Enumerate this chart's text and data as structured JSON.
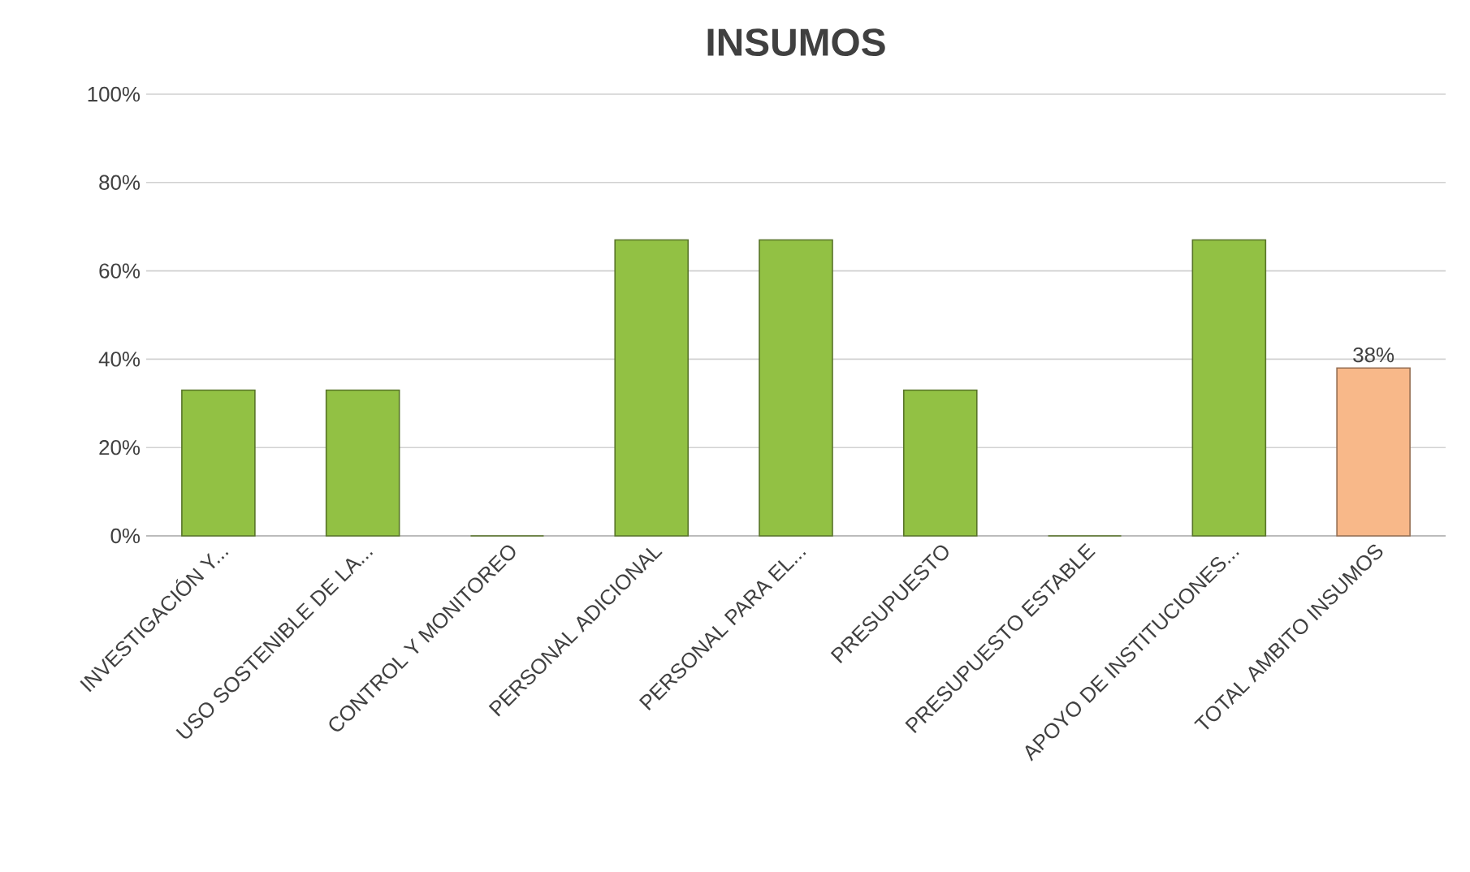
{
  "chart_data": {
    "type": "bar",
    "title": "INSUMOS",
    "categories": [
      "INVESTIGACIÓN Y...",
      "USO SOSTENIBLE DE LA...",
      "CONTROL Y MONITOREO",
      "PERSONAL ADICIONAL",
      "PERSONAL PARA EL...",
      "PRESUPUESTO",
      "PRESUPUESTO ESTABLE",
      "APOYO DE INSTITUCIONES...",
      "TOTAL AMBITO INSUMOS"
    ],
    "values": [
      33,
      33,
      0,
      67,
      67,
      33,
      0,
      67,
      38
    ],
    "colors": [
      "#92c144",
      "#92c144",
      "#92c144",
      "#92c144",
      "#92c144",
      "#92c144",
      "#92c144",
      "#92c144",
      "#f8b889"
    ],
    "value_labels": [
      null,
      null,
      null,
      null,
      null,
      null,
      null,
      null,
      "38%"
    ],
    "ylim": [
      0,
      100
    ],
    "yticks": [
      {
        "value": 0,
        "label": "0%"
      },
      {
        "value": 20,
        "label": "20%"
      },
      {
        "value": 40,
        "label": "40%"
      },
      {
        "value": 60,
        "label": "60%"
      },
      {
        "value": 80,
        "label": "80%"
      },
      {
        "value": 100,
        "label": "100%"
      }
    ],
    "grid": "y"
  }
}
